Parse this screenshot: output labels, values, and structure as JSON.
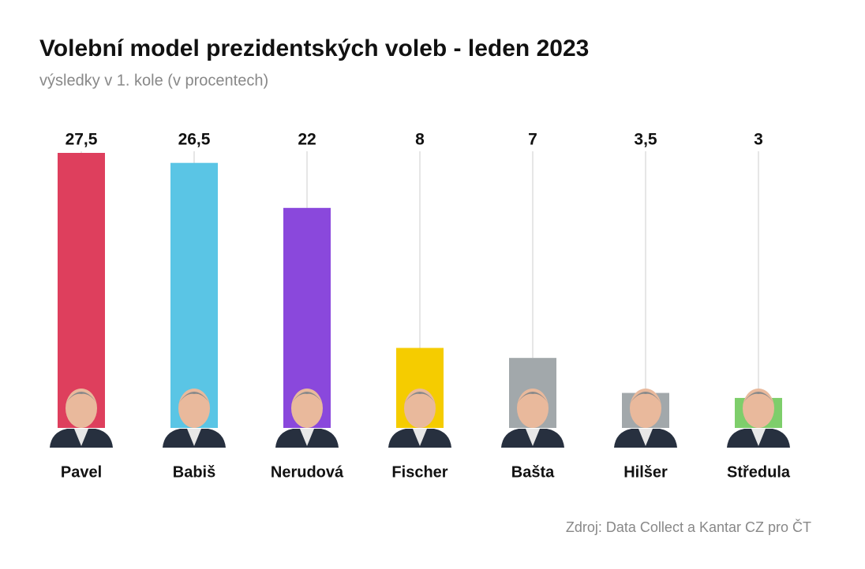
{
  "chart_data": {
    "type": "bar",
    "title": "Volební model prezidentských voleb - leden 2023",
    "subtitle": "výsledky v 1. kole (v procentech)",
    "categories": [
      "Pavel",
      "Babiš",
      "Nerudová",
      "Fischer",
      "Bašta",
      "Hilšer",
      "Středula"
    ],
    "values": [
      27.5,
      26.5,
      22,
      8,
      7,
      3.5,
      3
    ],
    "value_labels": [
      "27,5",
      "26,5",
      "22",
      "8",
      "7",
      "3,5",
      "3"
    ],
    "colors": [
      "#de3f5d",
      "#5ac5e5",
      "#8a48dc",
      "#f5cc00",
      "#a2a8ab",
      "#a2a8ab",
      "#7ece6b"
    ],
    "ylim": [
      0,
      27.5
    ],
    "source": "Zdroj: Data Collect a Kantar CZ pro ČT"
  }
}
